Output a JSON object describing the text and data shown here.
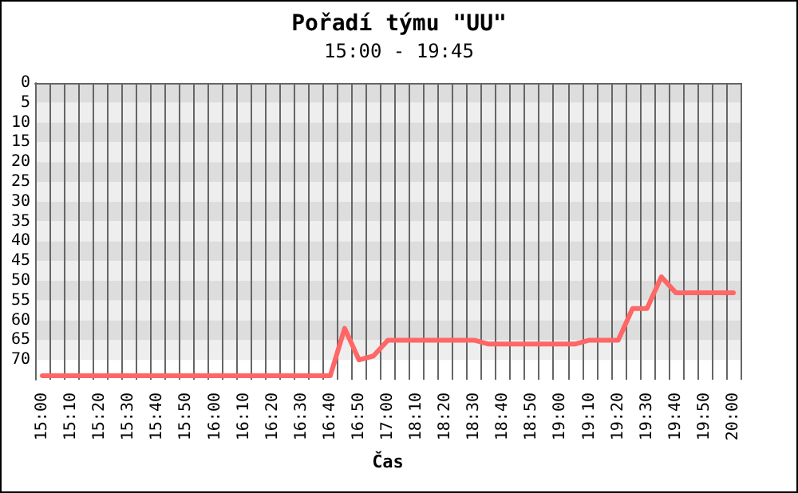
{
  "chart_data": {
    "type": "line",
    "title": "Pořadí týmu \"UU\"",
    "subtitle": "15:00 - 19:45",
    "xlabel": "Čas",
    "categories": [
      "15:00",
      null,
      "15:10",
      null,
      "15:20",
      null,
      "15:30",
      null,
      "15:40",
      null,
      "15:50",
      null,
      "16:00",
      null,
      "16:10",
      null,
      "16:20",
      null,
      "16:30",
      null,
      "16:40",
      null,
      "16:50",
      null,
      "17:00",
      null,
      "18:10",
      null,
      "18:20",
      null,
      "18:30",
      null,
      "18:40",
      null,
      "18:50",
      null,
      "19:00",
      null,
      "19:10",
      null,
      "19:20",
      null,
      "19:30",
      null,
      "19:40",
      null,
      "19:50",
      null,
      "20:00"
    ],
    "series": [
      {
        "color": "#ff6666",
        "values": [
          74,
          74,
          74,
          74,
          74,
          74,
          74,
          74,
          74,
          74,
          74,
          74,
          74,
          74,
          74,
          74,
          74,
          74,
          74,
          74,
          74,
          62,
          70,
          69,
          65,
          65,
          65,
          65,
          65,
          65,
          65,
          66,
          66,
          66,
          66,
          66,
          66,
          66,
          65,
          65,
          65,
          57,
          57,
          49,
          53,
          53,
          53,
          53,
          53
        ]
      }
    ],
    "ylim": [
      75,
      0
    ],
    "yticks": [
      0,
      5,
      10,
      15,
      20,
      25,
      30,
      35,
      40,
      45,
      50,
      55,
      60,
      65,
      70
    ],
    "grid": "x",
    "marker": "none",
    "line_style": "solid"
  }
}
